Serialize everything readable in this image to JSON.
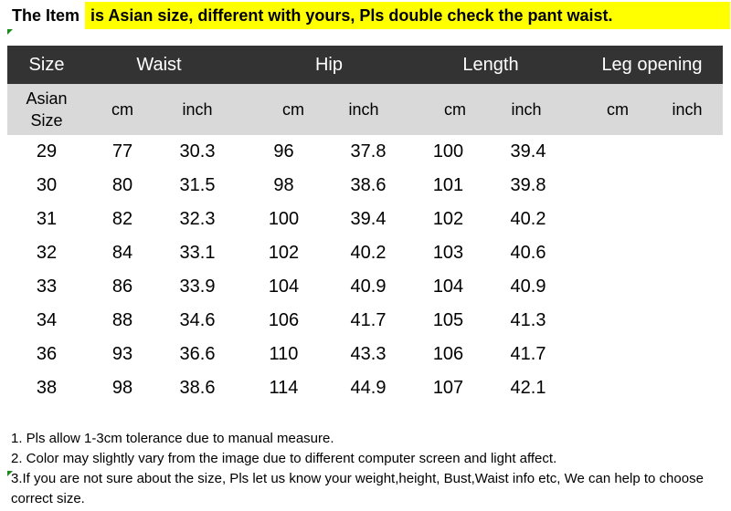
{
  "banner": {
    "label": "The Item",
    "message": "is Asian size, different with yours, Pls double check the pant waist."
  },
  "table": {
    "headers": [
      "Size",
      "Waist",
      "Hip",
      "Length",
      "Leg opening"
    ],
    "subheaders": {
      "asian_line1": "Asian",
      "asian_line2": "Size",
      "units": [
        "cm",
        "inch",
        "cm",
        "inch",
        "cm",
        "inch",
        "cm",
        "inch"
      ]
    },
    "rows": [
      [
        "29",
        "77",
        "30.3",
        "96",
        "37.8",
        "100",
        "39.4",
        "",
        ""
      ],
      [
        "30",
        "80",
        "31.5",
        "98",
        "38.6",
        "101",
        "39.8",
        "",
        ""
      ],
      [
        "31",
        "82",
        "32.3",
        "100",
        "39.4",
        "102",
        "40.2",
        "",
        ""
      ],
      [
        "32",
        "84",
        "33.1",
        "102",
        "40.2",
        "103",
        "40.6",
        "",
        ""
      ],
      [
        "33",
        "86",
        "33.9",
        "104",
        "40.9",
        "104",
        "40.9",
        "",
        ""
      ],
      [
        "34",
        "88",
        "34.6",
        "106",
        "41.7",
        "105",
        "41.3",
        "",
        ""
      ],
      [
        "36",
        "93",
        "36.6",
        "110",
        "43.3",
        "106",
        "41.7",
        "",
        ""
      ],
      [
        "38",
        "98",
        "38.6",
        "114",
        "44.9",
        "107",
        "42.1",
        "",
        ""
      ]
    ]
  },
  "notes": [
    "1. Pls allow 1-3cm tolerance due to manual measure.",
    "2. Color may slightly vary from the image due to different computer screen and light affect.",
    "3.If you are not sure about the size, Pls let us know your weight,height, Bust,Waist info etc, We can help to choose correct size."
  ],
  "colors": {
    "banner_highlight": "#ffff00",
    "header_band": "#333333",
    "subheader_band": "#d9d9d9",
    "corner_tick": "#1a8a1a"
  }
}
